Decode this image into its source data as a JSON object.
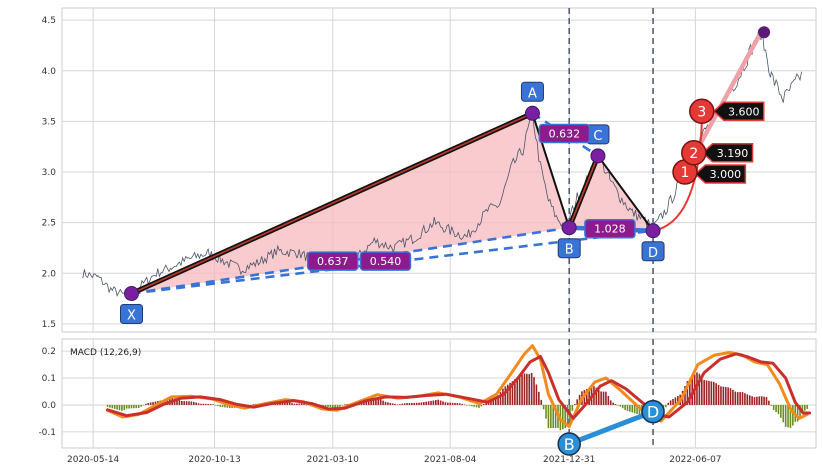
{
  "chart_data": [
    {
      "type": "line",
      "panel": "price",
      "ylim": [
        1.42,
        4.62
      ],
      "yticks": [
        1.5,
        2.0,
        2.5,
        3.0,
        3.5,
        4.0,
        4.5
      ],
      "grid": true,
      "colors": {
        "price": "#4a5568",
        "xabcd_edge": "#111111",
        "xabcd_inner": "#c0392b",
        "fill": "#f7b9be",
        "dashed": "#3a73d6",
        "marker": "#7b1fa2",
        "label_box": "#3a73d6",
        "ratio_box": "#8e1b8e",
        "target": "#e53935"
      },
      "price_anchors": [
        [
          "2020-05-01",
          2.0
        ],
        [
          "2020-05-20",
          1.96
        ],
        [
          "2020-06-05",
          1.84
        ],
        [
          "2020-06-20",
          1.79
        ],
        [
          "2020-07-10",
          1.86
        ],
        [
          "2020-08-01",
          2.0
        ],
        [
          "2020-08-20",
          2.06
        ],
        [
          "2020-09-10",
          2.14
        ],
        [
          "2020-10-05",
          2.2
        ],
        [
          "2020-10-25",
          2.12
        ],
        [
          "2020-11-15",
          2.04
        ],
        [
          "2020-12-05",
          2.1
        ],
        [
          "2020-12-31",
          2.22
        ],
        [
          "2021-01-25",
          2.2
        ],
        [
          "2021-02-20",
          2.12
        ],
        [
          "2021-03-10",
          2.05
        ],
        [
          "2021-04-05",
          2.12
        ],
        [
          "2021-05-01",
          2.32
        ],
        [
          "2021-05-25",
          2.25
        ],
        [
          "2021-06-20",
          2.35
        ],
        [
          "2021-07-15",
          2.5
        ],
        [
          "2021-08-04",
          2.42
        ],
        [
          "2021-08-25",
          2.36
        ],
        [
          "2021-09-20",
          2.62
        ],
        [
          "2021-10-05",
          2.68
        ],
        [
          "2021-10-20",
          3.05
        ],
        [
          "2021-11-03",
          3.22
        ],
        [
          "2021-11-15",
          3.58
        ],
        [
          "2021-11-25",
          3.05
        ],
        [
          "2021-12-05",
          2.72
        ],
        [
          "2021-12-15",
          2.55
        ],
        [
          "2021-12-27",
          2.45
        ],
        [
          "2022-01-10",
          2.75
        ],
        [
          "2022-01-25",
          2.95
        ],
        [
          "2022-02-05",
          3.18
        ],
        [
          "2022-02-20",
          2.92
        ],
        [
          "2022-03-05",
          2.75
        ],
        [
          "2022-03-20",
          2.6
        ],
        [
          "2022-04-05",
          2.52
        ],
        [
          "2022-04-15",
          2.44
        ],
        [
          "2022-05-01",
          2.62
        ],
        [
          "2022-05-20",
          2.92
        ],
        [
          "2022-06-05",
          3.22
        ],
        [
          "2022-06-20",
          3.42
        ],
        [
          "2022-07-01",
          3.52
        ],
        [
          "2022-07-15",
          3.72
        ],
        [
          "2022-08-01",
          3.95
        ],
        [
          "2022-08-15",
          4.2
        ],
        [
          "2022-08-28",
          4.38
        ],
        [
          "2022-09-10",
          3.95
        ],
        [
          "2022-09-25",
          3.72
        ],
        [
          "2022-10-10",
          3.88
        ],
        [
          "2022-10-20",
          3.98
        ]
      ],
      "pattern_points": [
        {
          "label": "X",
          "date": "2020-07-01",
          "value": 1.8,
          "label_pos": "below"
        },
        {
          "label": "A",
          "date": "2021-11-15",
          "value": 3.58,
          "label_pos": "above"
        },
        {
          "label": "B",
          "date": "2021-12-31",
          "value": 2.45,
          "label_pos": "below"
        },
        {
          "label": "C",
          "date": "2022-02-05",
          "value": 3.16,
          "label_pos": "above"
        },
        {
          "label": "D",
          "date": "2022-04-15",
          "value": 2.42,
          "label_pos": "below"
        }
      ],
      "extra_marker": {
        "date": "2022-09-01",
        "value": 4.38
      },
      "ratios": [
        {
          "text": "0.637",
          "from": "X",
          "to": "B",
          "anchor": [
            "2021-03-10",
            2.12
          ]
        },
        {
          "text": "0.540",
          "from": "X",
          "to": "D",
          "anchor": [
            "2021-05-15",
            2.12
          ]
        },
        {
          "text": "0.632",
          "from": "A",
          "to": "C",
          "anchor": [
            "2021-12-25",
            3.38
          ]
        },
        {
          "text": "1.028",
          "from": "B",
          "to": "D",
          "anchor": [
            "2022-02-20",
            2.44
          ]
        }
      ],
      "targets": [
        {
          "n": "1",
          "value_text": "3.000",
          "date": "2022-05-25",
          "value": 3.0,
          "label_date": "2022-06-22",
          "label_value": 2.98
        },
        {
          "n": "2",
          "value_text": "3.190",
          "date": "2022-06-05",
          "value": 3.19,
          "label_date": "2022-07-01",
          "label_value": 3.19
        },
        {
          "n": "3",
          "value_text": "3.600",
          "date": "2022-06-15",
          "value": 3.6,
          "label_date": "2022-07-15",
          "label_value": 3.6
        }
      ],
      "projection_line": {
        "from": [
          "2022-05-25",
          3.0
        ],
        "to": [
          "2022-08-28",
          4.38
        ]
      },
      "vlines": [
        "2021-12-31",
        "2022-04-15"
      ]
    },
    {
      "type": "line",
      "panel": "macd",
      "title": "MACD (12,26,9)",
      "ylim": [
        -0.16,
        0.245
      ],
      "yticks": [
        -0.1,
        0.0,
        0.1,
        0.2
      ],
      "xlim": [
        "2020-04-05",
        "2022-11-05"
      ],
      "xticks": [
        "2020-05-14",
        "2020-10-13",
        "2021-03-10",
        "2021-08-04",
        "2021-12-31",
        "2022-06-07"
      ],
      "grid": true,
      "colors": {
        "macd": "#f28a1e",
        "signal": "#c9302c",
        "hist_pos": "#9b2222",
        "hist_neg": "#6b8e23",
        "bd_line": "#2a8fd6",
        "bd_marker": "#2a8fd6"
      },
      "series": [
        {
          "key": "macd",
          "points": [
            [
              "2020-06-01",
              -0.02
            ],
            [
              "2020-06-20",
              -0.045
            ],
            [
              "2020-07-10",
              -0.035
            ],
            [
              "2020-08-01",
              0.0
            ],
            [
              "2020-08-20",
              0.03
            ],
            [
              "2020-09-15",
              0.032
            ],
            [
              "2020-10-10",
              0.022
            ],
            [
              "2020-11-01",
              0.0
            ],
            [
              "2020-11-20",
              -0.012
            ],
            [
              "2020-12-15",
              0.005
            ],
            [
              "2021-01-10",
              0.02
            ],
            [
              "2021-02-01",
              0.012
            ],
            [
              "2021-02-25",
              -0.015
            ],
            [
              "2021-03-15",
              -0.02
            ],
            [
              "2021-04-10",
              0.01
            ],
            [
              "2021-05-05",
              0.038
            ],
            [
              "2021-05-30",
              0.025
            ],
            [
              "2021-06-25",
              0.032
            ],
            [
              "2021-07-20",
              0.045
            ],
            [
              "2021-08-15",
              0.03
            ],
            [
              "2021-09-10",
              0.005
            ],
            [
              "2021-10-01",
              0.04
            ],
            [
              "2021-10-20",
              0.12
            ],
            [
              "2021-11-05",
              0.19
            ],
            [
              "2021-11-15",
              0.22
            ],
            [
              "2021-11-25",
              0.17
            ],
            [
              "2021-12-05",
              0.04
            ],
            [
              "2021-12-20",
              -0.055
            ],
            [
              "2021-12-31",
              -0.08
            ],
            [
              "2022-01-15",
              0.02
            ],
            [
              "2022-02-01",
              0.085
            ],
            [
              "2022-02-15",
              0.1
            ],
            [
              "2022-03-05",
              0.055
            ],
            [
              "2022-03-25",
              0.0
            ],
            [
              "2022-04-10",
              -0.04
            ],
            [
              "2022-04-25",
              -0.06
            ],
            [
              "2022-05-20",
              0.02
            ],
            [
              "2022-06-10",
              0.15
            ],
            [
              "2022-07-01",
              0.185
            ],
            [
              "2022-07-20",
              0.195
            ],
            [
              "2022-08-05",
              0.185
            ],
            [
              "2022-08-20",
              0.16
            ],
            [
              "2022-09-05",
              0.15
            ],
            [
              "2022-09-20",
              0.08
            ],
            [
              "2022-10-05",
              -0.02
            ],
            [
              "2022-10-15",
              -0.05
            ],
            [
              "2022-10-25",
              -0.035
            ]
          ]
        },
        {
          "key": "signal",
          "points": [
            [
              "2020-06-01",
              -0.018
            ],
            [
              "2020-06-25",
              -0.04
            ],
            [
              "2020-07-20",
              -0.028
            ],
            [
              "2020-08-10",
              0.002
            ],
            [
              "2020-09-01",
              0.025
            ],
            [
              "2020-09-25",
              0.03
            ],
            [
              "2020-10-20",
              0.02
            ],
            [
              "2020-11-10",
              0.002
            ],
            [
              "2020-12-01",
              -0.008
            ],
            [
              "2020-12-25",
              0.006
            ],
            [
              "2021-01-20",
              0.016
            ],
            [
              "2021-02-12",
              0.005
            ],
            [
              "2021-03-05",
              -0.015
            ],
            [
              "2021-03-25",
              -0.012
            ],
            [
              "2021-04-20",
              0.015
            ],
            [
              "2021-05-15",
              0.03
            ],
            [
              "2021-06-10",
              0.028
            ],
            [
              "2021-07-05",
              0.035
            ],
            [
              "2021-07-30",
              0.04
            ],
            [
              "2021-08-25",
              0.025
            ],
            [
              "2021-09-20",
              0.01
            ],
            [
              "2021-10-10",
              0.04
            ],
            [
              "2021-10-28",
              0.1
            ],
            [
              "2021-11-12",
              0.16
            ],
            [
              "2021-11-25",
              0.18
            ],
            [
              "2021-12-05",
              0.12
            ],
            [
              "2021-12-18",
              0.02
            ],
            [
              "2022-01-05",
              -0.05
            ],
            [
              "2022-01-20",
              0.0
            ],
            [
              "2022-02-08",
              0.07
            ],
            [
              "2022-02-22",
              0.09
            ],
            [
              "2022-03-12",
              0.06
            ],
            [
              "2022-04-01",
              0.01
            ],
            [
              "2022-04-20",
              -0.035
            ],
            [
              "2022-05-05",
              -0.045
            ],
            [
              "2022-05-28",
              0.01
            ],
            [
              "2022-06-18",
              0.12
            ],
            [
              "2022-07-08",
              0.17
            ],
            [
              "2022-07-28",
              0.19
            ],
            [
              "2022-08-12",
              0.178
            ],
            [
              "2022-08-28",
              0.16
            ],
            [
              "2022-09-12",
              0.155
            ],
            [
              "2022-09-28",
              0.1
            ],
            [
              "2022-10-10",
              0.01
            ],
            [
              "2022-10-20",
              -0.03
            ],
            [
              "2022-10-28",
              -0.03
            ]
          ]
        }
      ],
      "bd_markers": [
        {
          "label": "B",
          "date": "2021-12-31",
          "value": -0.145
        },
        {
          "label": "D",
          "date": "2022-04-15",
          "value": -0.025
        }
      ]
    }
  ]
}
